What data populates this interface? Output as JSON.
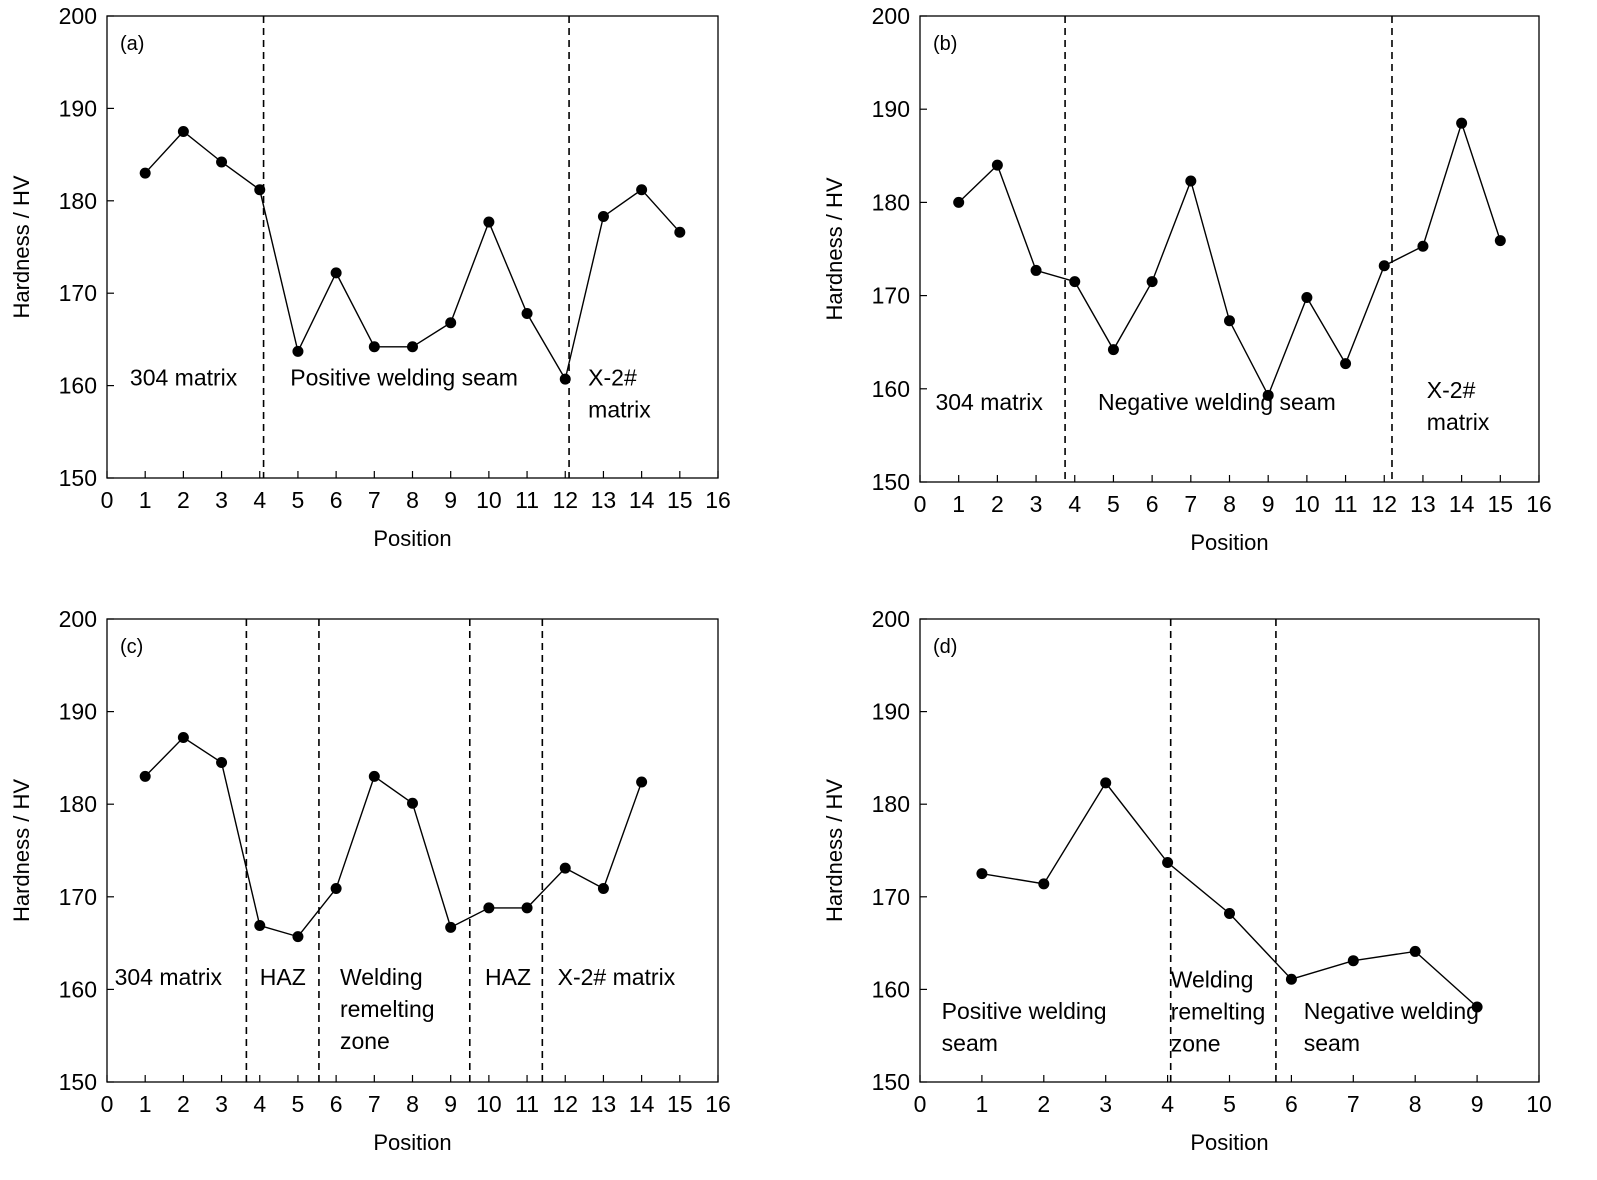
{
  "chart_data": [
    {
      "type": "line",
      "panel_label": "(a)",
      "xlabel": "Position",
      "ylabel": "Hardness / HV",
      "xlim": [
        0,
        16
      ],
      "ylim": [
        150,
        200
      ],
      "xticks": [
        0,
        1,
        2,
        3,
        4,
        5,
        6,
        7,
        8,
        9,
        10,
        11,
        12,
        13,
        14,
        15,
        16
      ],
      "yticks": [
        150,
        160,
        170,
        180,
        190,
        200
      ],
      "x": [
        1,
        2,
        3,
        4,
        5,
        6,
        7,
        8,
        9,
        10,
        11,
        12,
        13,
        14,
        15
      ],
      "values": [
        183,
        187.5,
        184.2,
        181.2,
        163.7,
        172.2,
        164.2,
        164.2,
        166.8,
        177.7,
        167.8,
        160.7,
        178.3,
        181.2,
        176.6
      ],
      "boundaries": [
        4.1,
        12.1
      ],
      "regions": [
        {
          "lines": [
            "304 matrix"
          ],
          "x": 0.6,
          "y": 160
        },
        {
          "lines": [
            "Positive welding seam"
          ],
          "x": 4.8,
          "y": 160
        },
        {
          "lines": [
            "X-2#",
            "matrix"
          ],
          "x": 12.6,
          "y": 160
        }
      ]
    },
    {
      "type": "line",
      "panel_label": "(b)",
      "xlabel": "Position",
      "ylabel": "Hardness / HV",
      "xlim": [
        0,
        16
      ],
      "ylim": [
        150,
        200
      ],
      "xticks": [
        0,
        1,
        2,
        3,
        4,
        5,
        6,
        7,
        8,
        9,
        10,
        11,
        12,
        13,
        14,
        15,
        16
      ],
      "yticks": [
        150,
        160,
        170,
        180,
        190,
        200
      ],
      "x": [
        1,
        2,
        3,
        4,
        5,
        6,
        7,
        8,
        9,
        10,
        11,
        12,
        13,
        14,
        15
      ],
      "values": [
        180,
        184,
        172.7,
        171.5,
        164.2,
        171.5,
        182.3,
        167.3,
        159.3,
        169.8,
        162.7,
        173.2,
        175.3,
        188.5,
        175.9
      ],
      "boundaries": [
        3.75,
        12.2
      ],
      "regions": [
        {
          "lines": [
            "304 matrix"
          ],
          "x": 0.4,
          "y": 157.7
        },
        {
          "lines": [
            "Negative welding seam"
          ],
          "x": 4.6,
          "y": 157.7
        },
        {
          "lines": [
            "X-2#",
            "matrix"
          ],
          "x": 13.1,
          "y": 159
        }
      ]
    },
    {
      "type": "line",
      "panel_label": "(c)",
      "xlabel": "Position",
      "ylabel": "Hardness / HV",
      "xlim": [
        0,
        16
      ],
      "ylim": [
        150,
        200
      ],
      "xticks": [
        0,
        1,
        2,
        3,
        4,
        5,
        6,
        7,
        8,
        9,
        10,
        11,
        12,
        13,
        14,
        15,
        16
      ],
      "yticks": [
        150,
        160,
        170,
        180,
        190,
        200
      ],
      "x": [
        1,
        2,
        3,
        4,
        5,
        6,
        7,
        8,
        9,
        10,
        11,
        12,
        13,
        14
      ],
      "values": [
        183,
        187.2,
        184.5,
        166.9,
        165.7,
        170.9,
        183,
        180.1,
        166.7,
        168.8,
        168.8,
        173.1,
        170.9,
        182.4
      ],
      "boundaries": [
        3.65,
        5.55,
        9.5,
        11.4
      ],
      "regions": [
        {
          "lines": [
            "304 matrix"
          ],
          "x": 0.2,
          "y": 160.5
        },
        {
          "lines": [
            "HAZ"
          ],
          "x": 4.0,
          "y": 160.5
        },
        {
          "lines": [
            "Welding",
            "remelting",
            "zone"
          ],
          "x": 6.1,
          "y": 160.5
        },
        {
          "lines": [
            "HAZ"
          ],
          "x": 9.9,
          "y": 160.5
        },
        {
          "lines": [
            "X-2# matrix"
          ],
          "x": 11.8,
          "y": 160.5
        }
      ]
    },
    {
      "type": "line",
      "panel_label": "(d)",
      "xlabel": "Position",
      "ylabel": "Hardness / HV",
      "xlim": [
        0,
        10
      ],
      "ylim": [
        150,
        200
      ],
      "xticks": [
        0,
        1,
        2,
        3,
        4,
        5,
        6,
        7,
        8,
        9,
        10
      ],
      "yticks": [
        150,
        160,
        170,
        180,
        190,
        200
      ],
      "x": [
        1,
        2,
        3,
        4,
        5,
        6,
        7,
        8,
        9
      ],
      "values": [
        172.5,
        171.4,
        182.3,
        173.7,
        168.2,
        161.1,
        163.1,
        164.1,
        158.1
      ],
      "boundaries": [
        4.05,
        5.75
      ],
      "regions": [
        {
          "lines": [
            "Positive welding",
            "seam"
          ],
          "x": 0.35,
          "y": 156.8
        },
        {
          "lines": [
            "Welding",
            "remelting",
            "zone"
          ],
          "x": 4.05,
          "y": 160.2
        },
        {
          "lines": [
            "Negative welding",
            "seam"
          ],
          "x": 6.2,
          "y": 156.8
        }
      ]
    }
  ]
}
